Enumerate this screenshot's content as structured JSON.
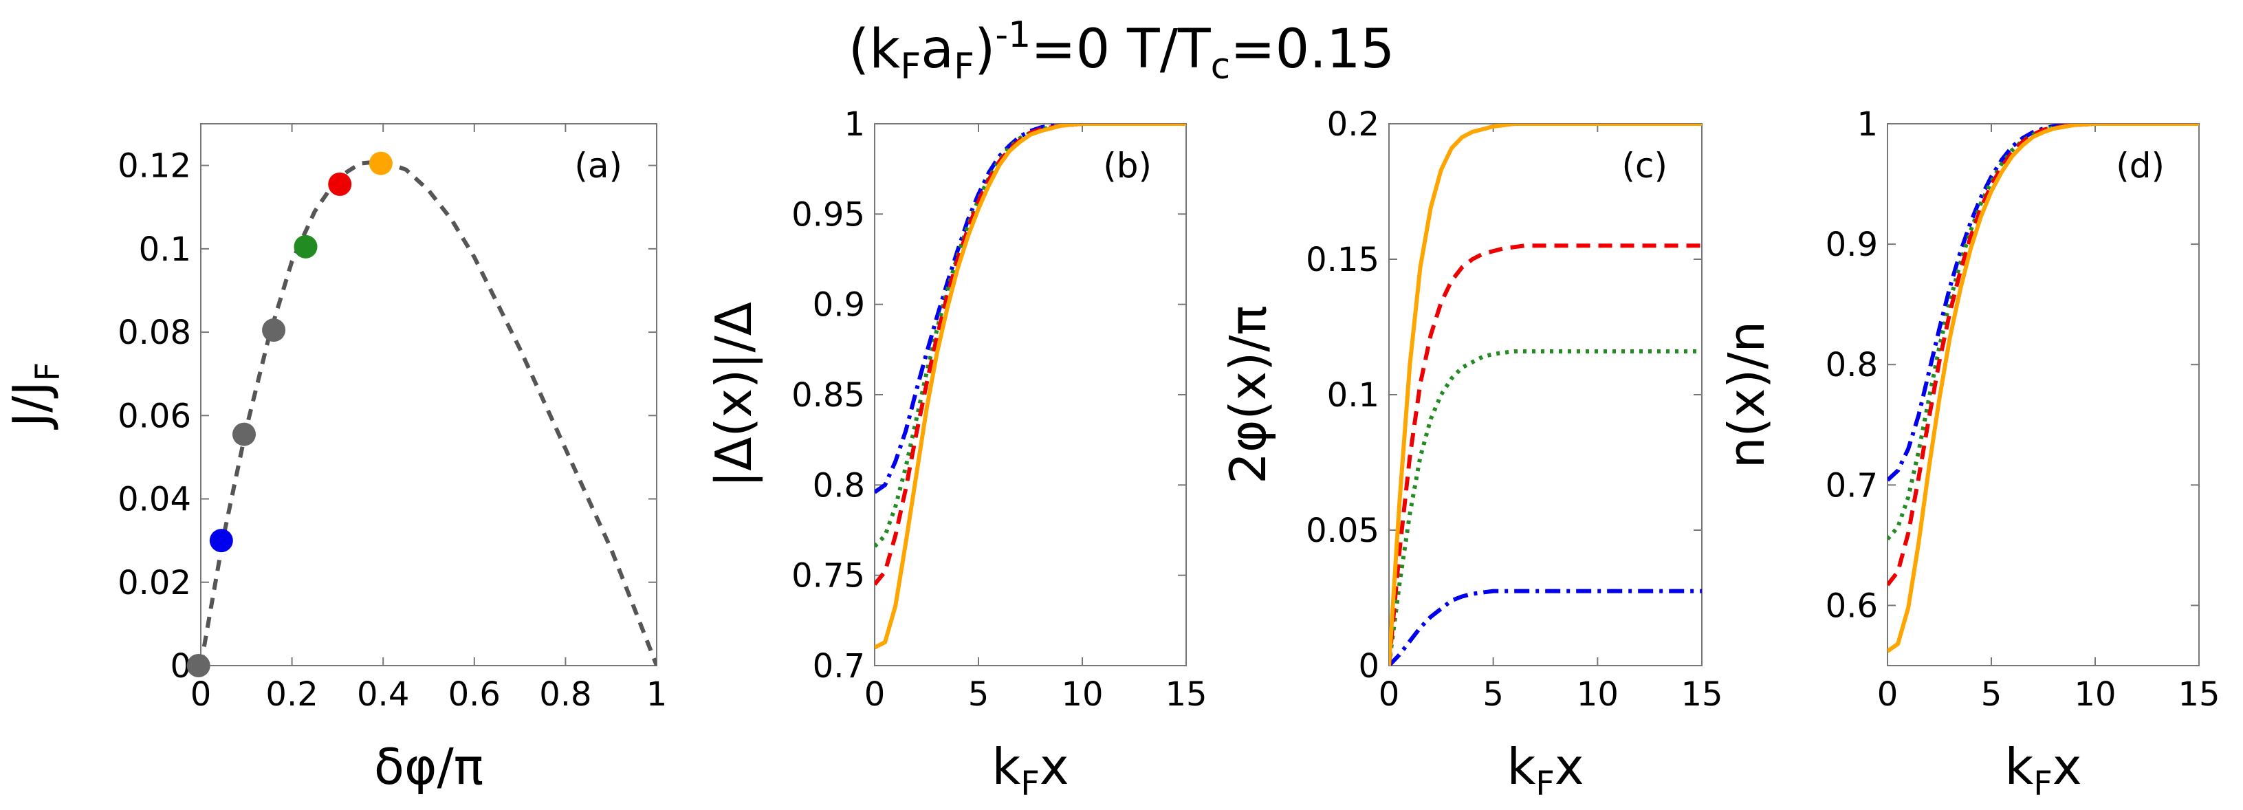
{
  "figure": {
    "title_base": "(k",
    "title_parts": [
      "(k",
      "F",
      "a",
      "F",
      ")",
      "-1",
      "=0 T/T",
      "c",
      "=0.15"
    ]
  },
  "chart_data": [
    {
      "type": "scatter",
      "panel": "(a)",
      "xlabel": "δφ/π",
      "ylabel_parts": [
        "J/J",
        "F"
      ],
      "xlim": [
        0,
        1
      ],
      "ylim": [
        0,
        0.13
      ],
      "xticks": [
        0,
        0.2,
        0.4,
        0.6,
        0.8,
        1
      ],
      "xtick_labels": [
        "0",
        "0.2",
        "0.4",
        "0.6",
        "0.8",
        "1"
      ],
      "yticks": [
        0,
        0.02,
        0.04,
        0.06,
        0.08,
        0.1,
        0.12
      ],
      "ytick_labels": [
        "0",
        "0.02",
        "0.04",
        "0.06",
        "0.08",
        "0.1",
        "0.12"
      ],
      "curve": {
        "style": "dashed",
        "color": "#555555",
        "x": [
          0,
          0.05,
          0.1,
          0.15,
          0.2,
          0.25,
          0.3,
          0.35,
          0.4,
          0.45,
          0.5,
          0.55,
          0.6,
          0.65,
          0.7,
          0.75,
          0.8,
          0.85,
          0.9,
          0.95,
          1.0
        ],
        "y": [
          0,
          0.031,
          0.057,
          0.079,
          0.097,
          0.109,
          0.117,
          0.1205,
          0.121,
          0.119,
          0.114,
          0.107,
          0.098,
          0.087,
          0.076,
          0.064,
          0.052,
          0.04,
          0.028,
          0.014,
          0.0
        ]
      },
      "points": [
        {
          "x": -0.005,
          "y": 0.0,
          "color": "#666666"
        },
        {
          "x": 0.045,
          "y": 0.03,
          "color": "#0000ee"
        },
        {
          "x": 0.095,
          "y": 0.0555,
          "color": "#666666"
        },
        {
          "x": 0.16,
          "y": 0.0805,
          "color": "#666666"
        },
        {
          "x": 0.23,
          "y": 0.1005,
          "color": "#228b22"
        },
        {
          "x": 0.305,
          "y": 0.1155,
          "color": "#ee0000"
        },
        {
          "x": 0.395,
          "y": 0.1205,
          "color": "#ffa500"
        }
      ]
    },
    {
      "type": "line",
      "panel": "(b)",
      "xlabel_parts": [
        "k",
        "F",
        "x"
      ],
      "ylabel": "|Δ(x)|/Δ",
      "xlim": [
        0,
        15
      ],
      "ylim": [
        0.7,
        1.0
      ],
      "xticks": [
        0,
        5,
        10,
        15
      ],
      "xtick_labels": [
        "0",
        "5",
        "10",
        "15"
      ],
      "yticks": [
        0.7,
        0.75,
        0.8,
        0.85,
        0.9,
        0.95,
        1.0
      ],
      "ytick_labels": [
        "0.7",
        "0.75",
        "0.8",
        "0.85",
        "0.9",
        "0.95",
        "1"
      ],
      "x": [
        0,
        0.5,
        1,
        1.5,
        2,
        2.5,
        3,
        3.5,
        4,
        4.5,
        5,
        5.5,
        6,
        6.5,
        7,
        7.5,
        8,
        9,
        10,
        11,
        12,
        13,
        14,
        15
      ],
      "series": [
        {
          "name": "blue",
          "color": "#0000ee",
          "dash": "dashdot",
          "values": [
            0.796,
            0.8,
            0.813,
            0.83,
            0.852,
            0.873,
            0.893,
            0.912,
            0.93,
            0.947,
            0.961,
            0.973,
            0.982,
            0.988,
            0.993,
            0.996,
            0.998,
            1.0,
            1.0,
            1.0,
            1.0,
            1.0,
            1.0,
            1.0
          ]
        },
        {
          "name": "green",
          "color": "#228b22",
          "dash": "dotted",
          "values": [
            0.766,
            0.772,
            0.788,
            0.81,
            0.836,
            0.862,
            0.886,
            0.908,
            0.927,
            0.944,
            0.958,
            0.97,
            0.98,
            0.987,
            0.992,
            0.995,
            0.997,
            0.999,
            1.0,
            1.0,
            1.0,
            1.0,
            1.0,
            1.0
          ]
        },
        {
          "name": "red",
          "color": "#ee0000",
          "dash": "dashed",
          "values": [
            0.745,
            0.752,
            0.772,
            0.798,
            0.828,
            0.856,
            0.882,
            0.905,
            0.925,
            0.942,
            0.957,
            0.969,
            0.979,
            0.986,
            0.991,
            0.995,
            0.997,
            0.999,
            1.0,
            1.0,
            1.0,
            1.0,
            1.0,
            1.0
          ]
        },
        {
          "name": "orange",
          "color": "#ffa500",
          "dash": "solid",
          "values": [
            0.71,
            0.713,
            0.733,
            0.768,
            0.805,
            0.842,
            0.873,
            0.898,
            0.92,
            0.938,
            0.953,
            0.966,
            0.977,
            0.985,
            0.99,
            0.994,
            0.996,
            0.999,
            1.0,
            1.0,
            1.0,
            1.0,
            1.0,
            1.0
          ]
        }
      ]
    },
    {
      "type": "line",
      "panel": "(c)",
      "xlabel_parts": [
        "k",
        "F",
        "x"
      ],
      "ylabel": "2φ(x)/π",
      "xlim": [
        0,
        15
      ],
      "ylim": [
        0,
        0.2
      ],
      "xticks": [
        0,
        5,
        10,
        15
      ],
      "xtick_labels": [
        "0",
        "5",
        "10",
        "15"
      ],
      "yticks": [
        0,
        0.05,
        0.1,
        0.15,
        0.2
      ],
      "ytick_labels": [
        "0",
        "0.05",
        "0.1",
        "0.15",
        "0.2"
      ],
      "x": [
        0,
        0.5,
        1,
        1.5,
        2,
        2.5,
        3,
        3.5,
        4,
        4.5,
        5,
        5.5,
        6,
        6.5,
        7,
        7.5,
        8,
        9,
        10,
        11,
        12,
        13,
        14,
        15
      ],
      "series": [
        {
          "name": "blue",
          "color": "#0000ee",
          "dash": "dashdot",
          "values": [
            0.0,
            0.004,
            0.009,
            0.014,
            0.018,
            0.021,
            0.024,
            0.0255,
            0.0265,
            0.027,
            0.0275,
            0.0275,
            0.0275,
            0.0275,
            0.0275,
            0.0275,
            0.0275,
            0.0275,
            0.0275,
            0.0275,
            0.0275,
            0.0275,
            0.0275,
            0.0275
          ]
        },
        {
          "name": "green",
          "color": "#228b22",
          "dash": "dotted",
          "values": [
            0.0,
            0.03,
            0.056,
            0.077,
            0.091,
            0.1,
            0.106,
            0.11,
            0.112,
            0.114,
            0.115,
            0.1155,
            0.116,
            0.116,
            0.116,
            0.116,
            0.116,
            0.116,
            0.116,
            0.116,
            0.116,
            0.116,
            0.116,
            0.116
          ]
        },
        {
          "name": "red",
          "color": "#ee0000",
          "dash": "dashed",
          "values": [
            0.0,
            0.042,
            0.077,
            0.104,
            0.122,
            0.134,
            0.142,
            0.147,
            0.15,
            0.152,
            0.153,
            0.154,
            0.1545,
            0.155,
            0.155,
            0.155,
            0.155,
            0.155,
            0.155,
            0.155,
            0.155,
            0.155,
            0.155,
            0.155
          ]
        },
        {
          "name": "orange",
          "color": "#ffa500",
          "dash": "solid",
          "values": [
            0.0,
            0.06,
            0.111,
            0.147,
            0.169,
            0.183,
            0.191,
            0.195,
            0.197,
            0.198,
            0.199,
            0.1995,
            0.2,
            0.2,
            0.2,
            0.2,
            0.2,
            0.2,
            0.2,
            0.2,
            0.2,
            0.2,
            0.2,
            0.2
          ]
        }
      ]
    },
    {
      "type": "line",
      "panel": "(d)",
      "xlabel_parts": [
        "k",
        "F",
        "x"
      ],
      "ylabel": "n(x)/n",
      "xlim": [
        0,
        15
      ],
      "ylim": [
        0.55,
        1.0
      ],
      "xticks": [
        0,
        5,
        10,
        15
      ],
      "xtick_labels": [
        "0",
        "5",
        "10",
        "15"
      ],
      "yticks": [
        0.6,
        0.7,
        0.8,
        0.9,
        1.0
      ],
      "ytick_labels": [
        "0.6",
        "0.7",
        "0.8",
        "0.9",
        "1"
      ],
      "x": [
        0,
        0.5,
        1,
        1.5,
        2,
        2.5,
        3,
        3.5,
        4,
        4.5,
        5,
        5.5,
        6,
        6.5,
        7,
        7.5,
        8,
        9,
        10,
        11,
        12,
        13,
        14,
        15
      ],
      "series": [
        {
          "name": "blue",
          "color": "#0000ee",
          "dash": "dashdot",
          "values": [
            0.704,
            0.712,
            0.73,
            0.758,
            0.794,
            0.83,
            0.864,
            0.893,
            0.918,
            0.939,
            0.956,
            0.97,
            0.981,
            0.988,
            0.993,
            0.996,
            0.998,
            1.0,
            1.0,
            1.0,
            1.0,
            1.0,
            1.0,
            1.0
          ]
        },
        {
          "name": "green",
          "color": "#228b22",
          "dash": "dotted",
          "values": [
            0.655,
            0.665,
            0.69,
            0.728,
            0.772,
            0.815,
            0.852,
            0.884,
            0.911,
            0.934,
            0.952,
            0.967,
            0.978,
            0.986,
            0.991,
            0.995,
            0.997,
            0.999,
            1.0,
            1.0,
            1.0,
            1.0,
            1.0,
            1.0
          ]
        },
        {
          "name": "red",
          "color": "#ee0000",
          "dash": "dashed",
          "values": [
            0.617,
            0.628,
            0.66,
            0.706,
            0.756,
            0.803,
            0.843,
            0.877,
            0.906,
            0.93,
            0.949,
            0.964,
            0.976,
            0.985,
            0.991,
            0.995,
            0.997,
            0.999,
            1.0,
            1.0,
            1.0,
            1.0,
            1.0,
            1.0
          ]
        },
        {
          "name": "orange",
          "color": "#ffa500",
          "dash": "solid",
          "values": [
            0.562,
            0.568,
            0.598,
            0.652,
            0.715,
            0.772,
            0.822,
            0.862,
            0.896,
            0.923,
            0.944,
            0.96,
            0.973,
            0.982,
            0.989,
            0.993,
            0.996,
            0.999,
            1.0,
            1.0,
            1.0,
            1.0,
            1.0,
            1.0
          ]
        }
      ]
    }
  ]
}
